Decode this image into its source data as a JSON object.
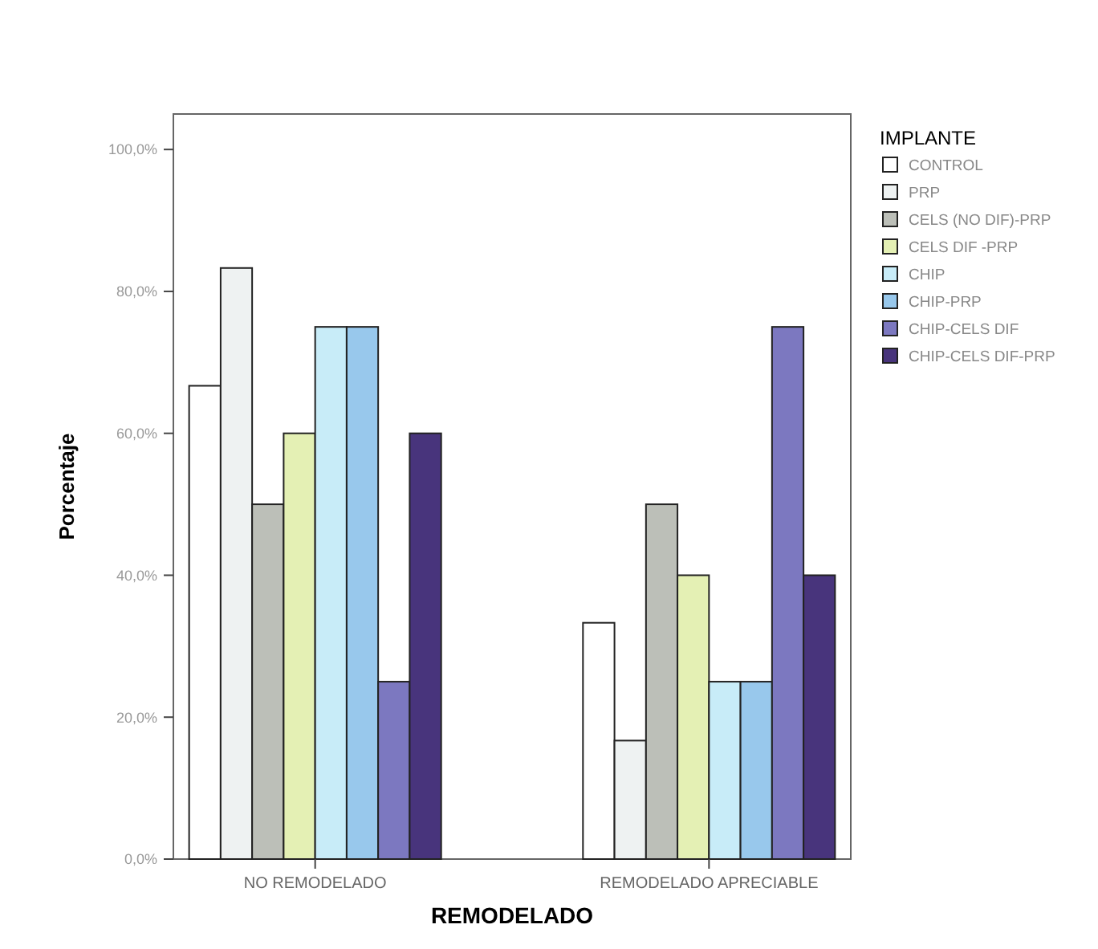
{
  "chart_data": {
    "type": "bar",
    "xlabel": "REMODELADO",
    "ylabel": "Porcentaje",
    "legend_title": "IMPLANTE",
    "legend": "right",
    "grid": false,
    "categories": [
      "NO REMODELADO",
      "REMODELADO APRECIABLE"
    ],
    "ylim": [
      0,
      105
    ],
    "yticks": [
      {
        "value": 0,
        "label": "0,0%"
      },
      {
        "value": 20,
        "label": "20,0%"
      },
      {
        "value": 40,
        "label": "40,0%"
      },
      {
        "value": 60,
        "label": "60,0%"
      },
      {
        "value": 80,
        "label": "80,0%"
      },
      {
        "value": 100,
        "label": "100,0%"
      }
    ],
    "series": [
      {
        "name": "CONTROL",
        "color": "#ffffff",
        "values": [
          66.7,
          33.3
        ]
      },
      {
        "name": "PRP",
        "color": "#eef2f2",
        "values": [
          83.3,
          16.7
        ]
      },
      {
        "name": "CELS (NO DIF)-PRP",
        "color": "#bcbfb8",
        "values": [
          50,
          50
        ]
      },
      {
        "name": "CELS DIF -PRP",
        "color": "#e4f0b4",
        "values": [
          60,
          40
        ]
      },
      {
        "name": "CHIP",
        "color": "#c8ecf8",
        "values": [
          75,
          25
        ]
      },
      {
        "name": "CHIP-PRP",
        "color": "#98c8ec",
        "values": [
          75,
          25
        ]
      },
      {
        "name": "CHIP-CELS DIF",
        "color": "#7c78c0",
        "values": [
          25,
          75
        ]
      },
      {
        "name": "CHIP-CELS DIF-PRP",
        "color": "#48347c",
        "values": [
          60,
          40
        ]
      }
    ]
  }
}
